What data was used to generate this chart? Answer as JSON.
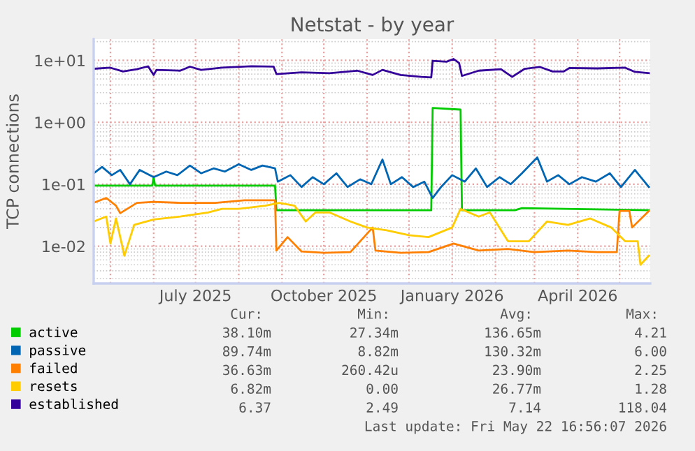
{
  "chart_data": {
    "type": "line",
    "title": "Netstat - by year",
    "ylabel": "TCP connections",
    "log": "y",
    "grid": true,
    "legend": "bottom",
    "marker": "none",
    "line_style": "solid",
    "xlim": [
      "2025-04-19",
      "2026-05-23"
    ],
    "ylim": [
      0.0025,
      22
    ],
    "xticks": [
      {
        "value": "2025-05-01",
        "label": null
      },
      {
        "value": "2025-06-01",
        "label": null
      },
      {
        "value": "2025-07-01",
        "label": "July 2025"
      },
      {
        "value": "2025-08-01",
        "label": null
      },
      {
        "value": "2025-09-01",
        "label": null
      },
      {
        "value": "2025-10-01",
        "label": "October 2025"
      },
      {
        "value": "2025-11-01",
        "label": null
      },
      {
        "value": "2025-12-01",
        "label": null
      },
      {
        "value": "2026-01-01",
        "label": "January 2026"
      },
      {
        "value": "2026-02-01",
        "label": null
      },
      {
        "value": "2026-03-01",
        "label": null
      },
      {
        "value": "2026-04-01",
        "label": "April 2026"
      },
      {
        "value": "2026-05-01",
        "label": null
      }
    ],
    "yticks": [
      {
        "value": 0.01,
        "label": "1e-02"
      },
      {
        "value": 0.1,
        "label": "1e-01"
      },
      {
        "value": 1,
        "label": "1e+00"
      },
      {
        "value": 10,
        "label": "1e+01"
      }
    ],
    "series": [
      {
        "name": "active",
        "color": "#00cc00",
        "x": [
          "2025-04-19",
          "2025-05-31",
          "2025-06-01",
          "2025-06-02",
          "2025-08-27",
          "2025-08-28",
          "2025-12-17",
          "2025-12-18",
          "2026-01-07",
          "2026-01-08",
          "2026-02-15",
          "2026-02-20",
          "2026-05-22"
        ],
        "values": [
          0.095,
          0.095,
          0.13,
          0.095,
          0.095,
          0.038,
          0.038,
          1.7,
          1.6,
          0.038,
          0.038,
          0.041,
          0.038
        ]
      },
      {
        "name": "passive",
        "color": "#0066b3",
        "x": [
          "2025-04-19",
          "2025-04-25",
          "2025-05-02",
          "2025-05-08",
          "2025-05-15",
          "2025-05-22",
          "2025-06-01",
          "2025-06-10",
          "2025-06-18",
          "2025-06-27",
          "2025-07-05",
          "2025-07-14",
          "2025-07-22",
          "2025-08-01",
          "2025-08-10",
          "2025-08-18",
          "2025-08-27",
          "2025-08-29",
          "2025-09-07",
          "2025-09-15",
          "2025-09-23",
          "2025-10-01",
          "2025-10-10",
          "2025-10-18",
          "2025-10-27",
          "2025-11-04",
          "2025-11-12",
          "2025-11-18",
          "2025-11-26",
          "2025-12-04",
          "2025-12-12",
          "2025-12-18",
          "2025-12-24",
          "2026-01-01",
          "2026-01-10",
          "2026-01-18",
          "2026-01-26",
          "2026-02-04",
          "2026-02-12",
          "2026-02-20",
          "2026-03-03",
          "2026-03-10",
          "2026-03-18",
          "2026-03-26",
          "2026-04-04",
          "2026-04-14",
          "2026-04-24",
          "2026-05-02",
          "2026-05-12",
          "2026-05-22"
        ],
        "values": [
          0.15,
          0.19,
          0.14,
          0.17,
          0.1,
          0.17,
          0.13,
          0.16,
          0.14,
          0.2,
          0.15,
          0.18,
          0.16,
          0.21,
          0.17,
          0.2,
          0.18,
          0.11,
          0.14,
          0.09,
          0.13,
          0.1,
          0.15,
          0.09,
          0.12,
          0.1,
          0.25,
          0.1,
          0.13,
          0.09,
          0.11,
          0.06,
          0.09,
          0.14,
          0.11,
          0.18,
          0.09,
          0.13,
          0.1,
          0.15,
          0.27,
          0.11,
          0.14,
          0.1,
          0.13,
          0.11,
          0.15,
          0.09,
          0.17,
          0.09
        ]
      },
      {
        "name": "failed",
        "color": "#ff8000",
        "x": [
          "2025-04-19",
          "2025-04-28",
          "2025-05-05",
          "2025-05-08",
          "2025-05-20",
          "2025-06-01",
          "2025-06-20",
          "2025-07-15",
          "2025-08-05",
          "2025-08-27",
          "2025-08-28",
          "2025-09-05",
          "2025-09-15",
          "2025-10-01",
          "2025-10-20",
          "2025-11-05",
          "2025-11-07",
          "2025-11-25",
          "2025-12-15",
          "2026-01-02",
          "2026-01-20",
          "2026-02-10",
          "2026-03-01",
          "2026-03-25",
          "2026-04-15",
          "2026-04-29",
          "2026-05-01",
          "2026-05-08",
          "2026-05-10",
          "2026-05-22"
        ],
        "values": [
          0.05,
          0.06,
          0.045,
          0.034,
          0.05,
          0.052,
          0.05,
          0.05,
          0.055,
          0.055,
          0.0085,
          0.014,
          0.0082,
          0.0078,
          0.008,
          0.02,
          0.0085,
          0.0078,
          0.008,
          0.011,
          0.0085,
          0.009,
          0.008,
          0.0085,
          0.008,
          0.008,
          0.037,
          0.037,
          0.02,
          0.037
        ]
      },
      {
        "name": "resets",
        "color": "#ffcc00",
        "x": [
          "2025-04-19",
          "2025-04-28",
          "2025-05-01",
          "2025-05-05",
          "2025-05-11",
          "2025-05-18",
          "2025-06-01",
          "2025-06-20",
          "2025-07-10",
          "2025-07-20",
          "2025-08-01",
          "2025-08-20",
          "2025-08-30",
          "2025-09-10",
          "2025-09-18",
          "2025-09-25",
          "2025-10-05",
          "2025-10-20",
          "2025-11-01",
          "2025-11-15",
          "2025-12-01",
          "2025-12-15",
          "2026-01-01",
          "2026-01-07",
          "2026-01-20",
          "2026-01-28",
          "2026-02-10",
          "2026-02-25",
          "2026-03-10",
          "2026-03-25",
          "2026-04-10",
          "2026-04-25",
          "2026-05-05",
          "2026-05-14",
          "2026-05-16",
          "2026-05-22"
        ],
        "values": [
          0.025,
          0.03,
          0.011,
          0.028,
          0.007,
          0.022,
          0.027,
          0.03,
          0.035,
          0.04,
          0.04,
          0.045,
          0.05,
          0.045,
          0.025,
          0.035,
          0.035,
          0.025,
          0.02,
          0.018,
          0.015,
          0.014,
          0.02,
          0.04,
          0.03,
          0.035,
          0.012,
          0.012,
          0.025,
          0.022,
          0.028,
          0.02,
          0.012,
          0.012,
          0.005,
          0.007
        ]
      },
      {
        "name": "established",
        "color": "#330099",
        "x": [
          "2025-04-19",
          "2025-05-01",
          "2025-05-10",
          "2025-05-20",
          "2025-05-28",
          "2025-06-01",
          "2025-06-03",
          "2025-06-20",
          "2025-06-27",
          "2025-07-05",
          "2025-07-20",
          "2025-08-10",
          "2025-08-26",
          "2025-08-28",
          "2025-09-15",
          "2025-10-05",
          "2025-10-25",
          "2025-11-05",
          "2025-11-12",
          "2025-11-25",
          "2025-12-10",
          "2025-12-17",
          "2025-12-18",
          "2025-12-28",
          "2026-01-02",
          "2026-01-06",
          "2026-01-08",
          "2026-01-20",
          "2026-02-05",
          "2026-02-13",
          "2026-02-22",
          "2026-03-05",
          "2026-03-14",
          "2026-03-22",
          "2026-03-26",
          "2026-04-15",
          "2026-05-05",
          "2026-05-12",
          "2026-05-22"
        ],
        "values": [
          7.3,
          7.6,
          6.6,
          7.2,
          8.0,
          5.8,
          7.0,
          6.8,
          7.9,
          7.0,
          7.6,
          8.0,
          7.9,
          6.0,
          6.4,
          6.2,
          6.8,
          5.8,
          7.0,
          5.8,
          5.4,
          5.3,
          9.8,
          9.5,
          10.5,
          9.0,
          5.6,
          6.8,
          7.2,
          5.4,
          7.3,
          7.8,
          6.6,
          6.6,
          7.5,
          7.4,
          7.6,
          6.5,
          6.2
        ]
      }
    ],
    "annotations": [
      "Cur:",
      "Min:",
      "Avg:",
      "Max:",
      "38.10m",
      "27.34m",
      "136.65m",
      "4.21",
      "89.74m",
      "8.82m",
      "130.32m",
      "6.00",
      "36.63m",
      "260.42u",
      "23.90m",
      "2.25",
      "6.82m",
      "0.00",
      "26.77m",
      "1.28",
      "6.37",
      "2.49",
      "7.14",
      "118.04",
      "Last update: Fri May 22 16:56:07 2026"
    ]
  }
}
